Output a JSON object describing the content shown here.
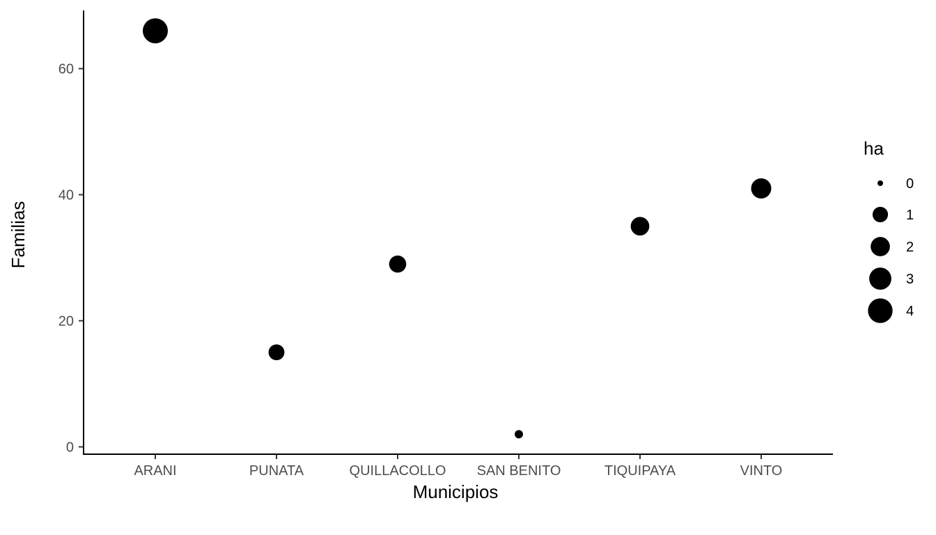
{
  "chart_data": {
    "type": "scatter",
    "xlabel": "Municipios",
    "ylabel": "Familias",
    "categories": [
      "ARANI",
      "PUNATA",
      "QUILLACOLLO",
      "SAN BENITO",
      "TIQUIPAYA",
      "VINTO"
    ],
    "points": [
      {
        "x": "ARANI",
        "y": 66,
        "ha": 4.2
      },
      {
        "x": "PUNATA",
        "y": 15,
        "ha": 1.1
      },
      {
        "x": "QUILLACOLLO",
        "y": 29,
        "ha": 1.4
      },
      {
        "x": "SAN BENITO",
        "y": 2,
        "ha": 0.05
      },
      {
        "x": "TIQUIPAYA",
        "y": 35,
        "ha": 1.8
      },
      {
        "x": "VINTO",
        "y": 41,
        "ha": 2.3
      }
    ],
    "ylim": [
      -1,
      69
    ],
    "yticks": [
      0,
      20,
      40,
      60
    ],
    "grid": false,
    "point_color": "#000000",
    "legend": {
      "title": "ha",
      "position": "right",
      "entries": [
        {
          "label": "0",
          "value": 0
        },
        {
          "label": "1",
          "value": 1
        },
        {
          "label": "2",
          "value": 2
        },
        {
          "label": "3",
          "value": 3
        },
        {
          "label": "4",
          "value": 4
        }
      ]
    }
  }
}
